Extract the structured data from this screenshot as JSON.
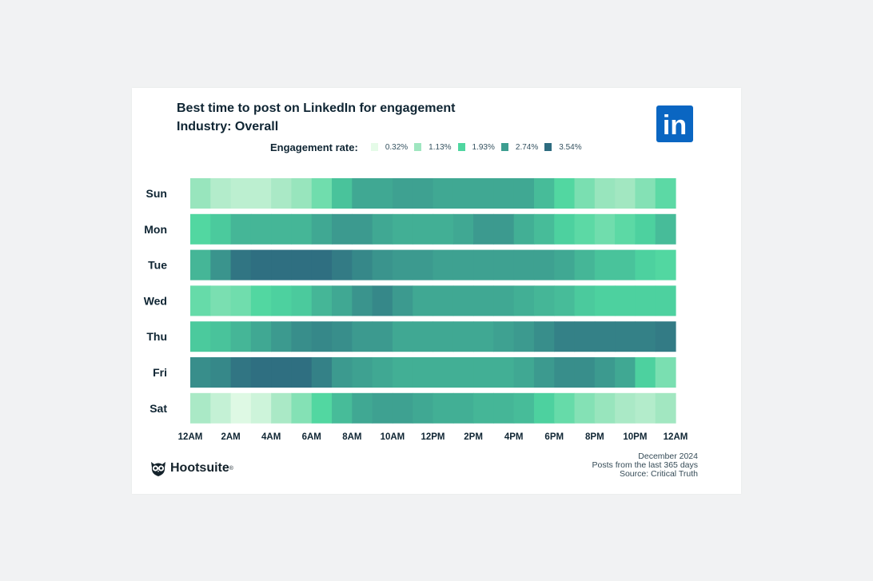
{
  "chart_data": {
    "type": "heatmap",
    "title": "Best time to post on LinkedIn for engagement",
    "subtitle": "Industry: Overall",
    "legend": {
      "title": "Engagement rate:",
      "items": [
        {
          "label": "0.32%",
          "value": 0.32,
          "color": "#e5fbe8"
        },
        {
          "label": "1.13%",
          "value": 1.13,
          "color": "#9fe6c0"
        },
        {
          "label": "1.93%",
          "value": 1.93,
          "color": "#4fd6a0"
        },
        {
          "label": "2.74%",
          "value": 2.74,
          "color": "#3d9e90"
        },
        {
          "label": "3.54%",
          "value": 3.54,
          "color": "#2e6c80"
        }
      ]
    },
    "rows": [
      "Sun",
      "Mon",
      "Tue",
      "Wed",
      "Thu",
      "Fri",
      "Sat"
    ],
    "x_tick_labels": [
      "12AM",
      "2AM",
      "4AM",
      "6AM",
      "8AM",
      "10AM",
      "12PM",
      "2PM",
      "4PM",
      "6PM",
      "8PM",
      "10PM",
      "12AM"
    ],
    "hours": 24,
    "values": [
      [
        1.2,
        0.9,
        0.8,
        0.8,
        1.0,
        1.2,
        1.6,
        2.2,
        2.6,
        2.6,
        2.7,
        2.7,
        2.6,
        2.6,
        2.6,
        2.6,
        2.6,
        2.3,
        1.9,
        1.5,
        1.2,
        1.1,
        1.4,
        1.8
      ],
      [
        1.9,
        2.1,
        2.4,
        2.4,
        2.4,
        2.4,
        2.6,
        2.8,
        2.8,
        2.6,
        2.5,
        2.5,
        2.5,
        2.6,
        2.8,
        2.8,
        2.5,
        2.3,
        2.0,
        1.8,
        1.6,
        1.8,
        2.0,
        2.3
      ],
      [
        2.4,
        2.9,
        3.4,
        3.5,
        3.5,
        3.5,
        3.5,
        3.3,
        3.1,
        2.9,
        2.8,
        2.8,
        2.7,
        2.7,
        2.7,
        2.7,
        2.7,
        2.7,
        2.6,
        2.4,
        2.2,
        2.2,
        2.0,
        1.9
      ],
      [
        1.7,
        1.5,
        1.6,
        1.9,
        2.0,
        2.1,
        2.4,
        2.6,
        2.9,
        3.1,
        2.8,
        2.6,
        2.6,
        2.6,
        2.6,
        2.6,
        2.5,
        2.4,
        2.3,
        2.1,
        2.0,
        2.0,
        2.0,
        2.0
      ],
      [
        2.1,
        2.2,
        2.4,
        2.6,
        2.8,
        3.0,
        3.1,
        3.0,
        2.8,
        2.8,
        2.6,
        2.6,
        2.6,
        2.6,
        2.6,
        2.7,
        2.8,
        3.0,
        3.2,
        3.2,
        3.2,
        3.2,
        3.2,
        3.3
      ],
      [
        3.0,
        3.1,
        3.4,
        3.5,
        3.5,
        3.5,
        3.2,
        2.8,
        2.7,
        2.6,
        2.5,
        2.5,
        2.5,
        2.5,
        2.5,
        2.5,
        2.6,
        2.8,
        3.0,
        3.0,
        2.8,
        2.6,
        2.0,
        1.5
      ],
      [
        1.0,
        0.7,
        0.4,
        0.6,
        1.0,
        1.4,
        1.9,
        2.3,
        2.6,
        2.7,
        2.7,
        2.6,
        2.5,
        2.5,
        2.4,
        2.4,
        2.3,
        2.0,
        1.7,
        1.4,
        1.2,
        1.0,
        0.9,
        1.1
      ]
    ]
  },
  "logo": {
    "text": "in",
    "color": "#0a66c2"
  },
  "brand": {
    "name": "Hootsuite",
    "mark": "®"
  },
  "footer": {
    "date": "December 2024",
    "scope": "Posts from the last 365 days",
    "source": "Source: Critical Truth"
  }
}
